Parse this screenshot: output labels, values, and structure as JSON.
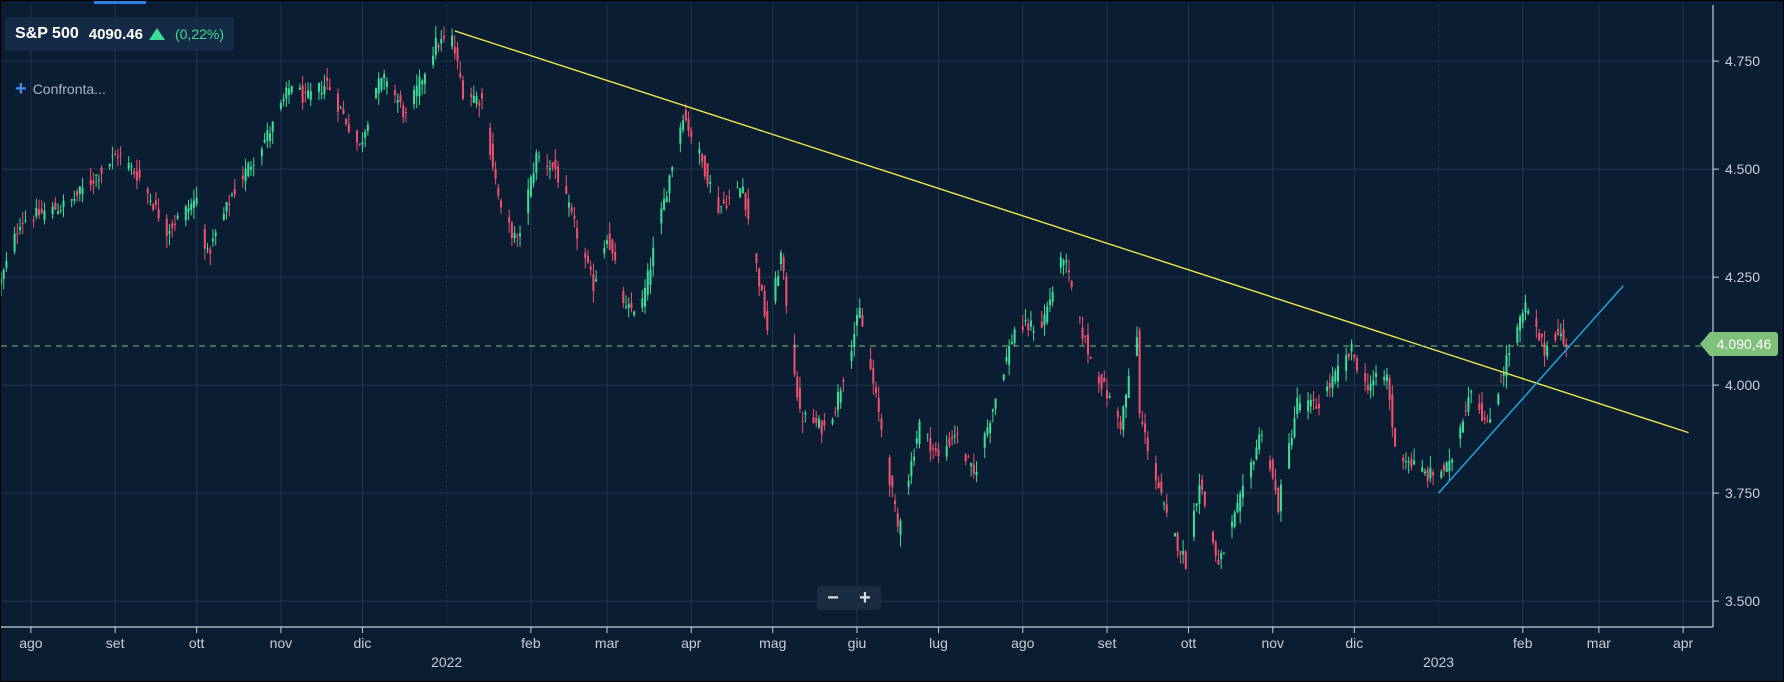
{
  "header": {
    "symbol": "S&P 500",
    "price": "4090.46",
    "change": "(0,22%)",
    "compare_label": "Confronta..."
  },
  "zoom": {
    "minus": "−",
    "plus": "+"
  },
  "last_price_label": "4.090,46",
  "colors": {
    "background": "#0b1d33",
    "grid": "#1f3650",
    "up": "#3ddc97",
    "down": "#f0506e",
    "trendline_resistance": "#e8e84a",
    "trendline_support": "#1ea8e8",
    "last_price": "#7fc07a"
  },
  "chart_data": {
    "type": "candlestick",
    "y_ticks": [
      "4.750",
      "4.500",
      "4.250",
      "4.000",
      "3.750",
      "3.500"
    ],
    "y_tick_values": [
      4750,
      4500,
      4250,
      4000,
      3750,
      3500
    ],
    "ylim": [
      3440,
      4880
    ],
    "x_ticks": [
      "ago",
      "set",
      "ott",
      "nov",
      "dic",
      "feb",
      "mar",
      "apr",
      "mag",
      "giu",
      "lug",
      "ago",
      "set",
      "ott",
      "nov",
      "dic",
      "feb",
      "mar",
      "apr"
    ],
    "x_tick_dates": [
      "2021-08-01",
      "2021-09-01",
      "2021-10-01",
      "2021-11-01",
      "2021-12-01",
      "2022-02-01",
      "2022-03-01",
      "2022-04-01",
      "2022-05-01",
      "2022-06-01",
      "2022-07-01",
      "2022-08-01",
      "2022-09-01",
      "2022-10-01",
      "2022-11-01",
      "2022-12-01",
      "2023-02-01",
      "2023-03-01",
      "2023-04-01"
    ],
    "year_ticks": [
      {
        "label": "2022",
        "date": "2022-01-01"
      },
      {
        "label": "2023",
        "date": "2023-01-01"
      }
    ],
    "xlim": [
      "2021-07-21",
      "2023-04-12"
    ],
    "last_price": 4090.46,
    "series_anchors": [
      [
        "2021-07-21",
        4240
      ],
      [
        "2021-07-28",
        4380
      ],
      [
        "2021-08-15",
        4420
      ],
      [
        "2021-09-02",
        4535
      ],
      [
        "2021-09-10",
        4480
      ],
      [
        "2021-09-20",
        4360
      ],
      [
        "2021-10-01",
        4430
      ],
      [
        "2021-10-05",
        4300
      ],
      [
        "2021-10-14",
        4440
      ],
      [
        "2021-10-29",
        4600
      ],
      [
        "2021-11-05",
        4700
      ],
      [
        "2021-11-10",
        4660
      ],
      [
        "2021-11-18",
        4700
      ],
      [
        "2021-11-30",
        4550
      ],
      [
        "2021-12-06",
        4690
      ],
      [
        "2021-12-10",
        4710
      ],
      [
        "2021-12-17",
        4620
      ],
      [
        "2021-12-28",
        4790
      ],
      [
        "2022-01-03",
        4800
      ],
      [
        "2022-01-07",
        4680
      ],
      [
        "2022-01-14",
        4660
      ],
      [
        "2022-01-21",
        4400
      ],
      [
        "2022-01-27",
        4330
      ],
      [
        "2022-02-03",
        4530
      ],
      [
        "2022-02-10",
        4500
      ],
      [
        "2022-02-18",
        4350
      ],
      [
        "2022-02-24",
        4230
      ],
      [
        "2022-03-01",
        4350
      ],
      [
        "2022-03-08",
        4170
      ],
      [
        "2022-03-14",
        4190
      ],
      [
        "2022-03-29",
        4630
      ],
      [
        "2022-04-06",
        4500
      ],
      [
        "2022-04-11",
        4410
      ],
      [
        "2022-04-20",
        4460
      ],
      [
        "2022-04-29",
        4130
      ],
      [
        "2022-05-04",
        4300
      ],
      [
        "2022-05-11",
        3930
      ],
      [
        "2022-05-20",
        3900
      ],
      [
        "2022-05-24",
        3950
      ],
      [
        "2022-06-02",
        4170
      ],
      [
        "2022-06-10",
        3900
      ],
      [
        "2022-06-16",
        3670
      ],
      [
        "2022-06-24",
        3910
      ],
      [
        "2022-07-01",
        3830
      ],
      [
        "2022-07-07",
        3890
      ],
      [
        "2022-07-14",
        3790
      ],
      [
        "2022-07-29",
        4130
      ],
      [
        "2022-08-08",
        4140
      ],
      [
        "2022-08-16",
        4300
      ],
      [
        "2022-08-22",
        4140
      ],
      [
        "2022-08-26",
        4060
      ],
      [
        "2022-09-06",
        3910
      ],
      [
        "2022-09-12",
        4110
      ],
      [
        "2022-09-13",
        3930
      ],
      [
        "2022-09-23",
        3690
      ],
      [
        "2022-09-30",
        3590
      ],
      [
        "2022-10-05",
        3780
      ],
      [
        "2022-10-12",
        3580
      ],
      [
        "2022-10-21",
        3750
      ],
      [
        "2022-10-28",
        3900
      ],
      [
        "2022-11-03",
        3720
      ],
      [
        "2022-11-10",
        3960
      ],
      [
        "2022-11-17",
        3950
      ],
      [
        "2022-11-30",
        4080
      ],
      [
        "2022-12-05",
        4000
      ],
      [
        "2022-12-13",
        4020
      ],
      [
        "2022-12-16",
        3850
      ],
      [
        "2022-12-22",
        3820
      ],
      [
        "2022-12-28",
        3790
      ],
      [
        "2023-01-05",
        3810
      ],
      [
        "2023-01-13",
        4000
      ],
      [
        "2023-01-19",
        3900
      ],
      [
        "2023-01-26",
        4060
      ],
      [
        "2023-02-02",
        4180
      ],
      [
        "2023-02-09",
        4080
      ],
      [
        "2023-02-14",
        4130
      ],
      [
        "2023-02-17",
        4080
      ]
    ],
    "trendlines": [
      {
        "name": "resistance",
        "from": [
          "2022-01-04",
          4820
        ],
        "to": [
          "2023-04-03",
          3890
        ]
      },
      {
        "name": "support",
        "from": [
          "2023-01-01",
          3750
        ],
        "to": [
          "2023-03-10",
          4230
        ]
      }
    ]
  }
}
